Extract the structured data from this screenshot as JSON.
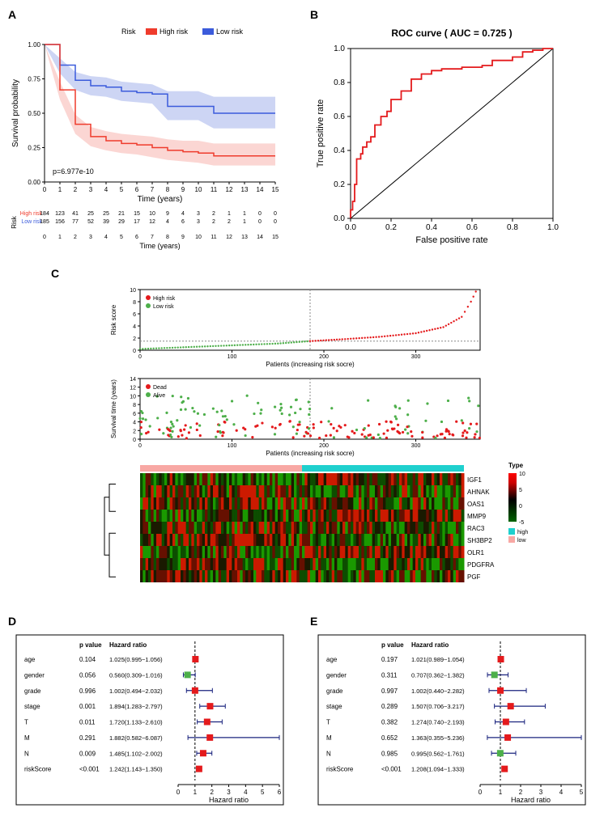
{
  "panelA": {
    "label": "A",
    "legend_title": "Risk",
    "legend": [
      {
        "label": "High risk",
        "color": "#ef3b2c"
      },
      {
        "label": "Low risk",
        "color": "#3b5bdb"
      }
    ],
    "y_label": "Survival probability",
    "x_label": "Time (years)",
    "p_value_text": "p=6.977e-10",
    "x_ticks": [
      0,
      1,
      2,
      3,
      4,
      5,
      6,
      7,
      8,
      9,
      10,
      11,
      12,
      13,
      14,
      15
    ],
    "y_ticks": [
      0.0,
      0.25,
      0.5,
      0.75,
      1.0
    ],
    "xlim": [
      0,
      15
    ],
    "ylim": [
      0,
      1
    ],
    "curves": {
      "high": {
        "color": "#ef3b2c",
        "band_color": "#f9c5c0",
        "points": [
          [
            0,
            1.0
          ],
          [
            1,
            0.67
          ],
          [
            2,
            0.42
          ],
          [
            3,
            0.33
          ],
          [
            4,
            0.3
          ],
          [
            5,
            0.28
          ],
          [
            6,
            0.27
          ],
          [
            7,
            0.25
          ],
          [
            8,
            0.23
          ],
          [
            9,
            0.22
          ],
          [
            10,
            0.21
          ],
          [
            11,
            0.19
          ],
          [
            12,
            0.19
          ],
          [
            13,
            0.19
          ],
          [
            14,
            0.19
          ],
          [
            15,
            0.19
          ]
        ],
        "band_upper": [
          [
            0,
            1.0
          ],
          [
            1,
            0.73
          ],
          [
            2,
            0.49
          ],
          [
            3,
            0.4
          ],
          [
            4,
            0.37
          ],
          [
            5,
            0.35
          ],
          [
            6,
            0.34
          ],
          [
            7,
            0.33
          ],
          [
            8,
            0.31
          ],
          [
            9,
            0.3
          ],
          [
            10,
            0.3
          ],
          [
            11,
            0.28
          ],
          [
            12,
            0.28
          ],
          [
            13,
            0.28
          ],
          [
            14,
            0.28
          ],
          [
            15,
            0.28
          ]
        ],
        "band_lower": [
          [
            0,
            1.0
          ],
          [
            1,
            0.6
          ],
          [
            2,
            0.35
          ],
          [
            3,
            0.26
          ],
          [
            4,
            0.23
          ],
          [
            5,
            0.21
          ],
          [
            6,
            0.2
          ],
          [
            7,
            0.18
          ],
          [
            8,
            0.16
          ],
          [
            9,
            0.15
          ],
          [
            10,
            0.14
          ],
          [
            11,
            0.12
          ],
          [
            12,
            0.12
          ],
          [
            13,
            0.12
          ],
          [
            14,
            0.12
          ],
          [
            15,
            0.12
          ]
        ]
      },
      "low": {
        "color": "#3b5bdb",
        "band_color": "#b8c3ef",
        "points": [
          [
            0,
            1.0
          ],
          [
            1,
            0.85
          ],
          [
            2,
            0.74
          ],
          [
            3,
            0.7
          ],
          [
            4,
            0.69
          ],
          [
            5,
            0.66
          ],
          [
            6,
            0.65
          ],
          [
            7,
            0.64
          ],
          [
            8,
            0.55
          ],
          [
            9,
            0.55
          ],
          [
            10,
            0.55
          ],
          [
            11,
            0.5
          ],
          [
            12,
            0.5
          ],
          [
            13,
            0.5
          ],
          [
            14,
            0.5
          ],
          [
            15,
            0.5
          ]
        ],
        "band_upper": [
          [
            0,
            1.0
          ],
          [
            1,
            0.9
          ],
          [
            2,
            0.8
          ],
          [
            3,
            0.77
          ],
          [
            4,
            0.76
          ],
          [
            5,
            0.73
          ],
          [
            6,
            0.72
          ],
          [
            7,
            0.71
          ],
          [
            8,
            0.66
          ],
          [
            9,
            0.66
          ],
          [
            10,
            0.66
          ],
          [
            11,
            0.62
          ],
          [
            12,
            0.62
          ],
          [
            13,
            0.62
          ],
          [
            14,
            0.62
          ],
          [
            15,
            0.62
          ]
        ],
        "band_lower": [
          [
            0,
            1.0
          ],
          [
            1,
            0.79
          ],
          [
            2,
            0.67
          ],
          [
            3,
            0.63
          ],
          [
            4,
            0.62
          ],
          [
            5,
            0.59
          ],
          [
            6,
            0.58
          ],
          [
            7,
            0.57
          ],
          [
            8,
            0.45
          ],
          [
            9,
            0.45
          ],
          [
            10,
            0.45
          ],
          [
            11,
            0.39
          ],
          [
            12,
            0.39
          ],
          [
            13,
            0.39
          ],
          [
            14,
            0.39
          ],
          [
            15,
            0.39
          ]
        ]
      }
    },
    "risk_table": {
      "y_label": "Risk",
      "rows": [
        {
          "label": "High risk",
          "color": "#ef3b2c",
          "counts": [
            184,
            123,
            41,
            25,
            25,
            21,
            15,
            10,
            9,
            4,
            3,
            2,
            1,
            1,
            0,
            0
          ]
        },
        {
          "label": "Low risk",
          "color": "#3b5bdb",
          "counts": [
            185,
            156,
            77,
            52,
            39,
            29,
            17,
            12,
            4,
            6,
            3,
            2,
            2,
            1,
            0,
            0
          ]
        }
      ]
    }
  },
  "panelB": {
    "label": "B",
    "title": "ROC curve ( AUC =  0.725 )",
    "x_label": "False positive rate",
    "y_label": "True positive rate",
    "ticks": [
      0.0,
      0.2,
      0.4,
      0.6,
      0.8,
      1.0
    ],
    "line_color": "#e41a1c",
    "diag_color": "#000000",
    "roc_points": [
      [
        0,
        0
      ],
      [
        0.01,
        0.05
      ],
      [
        0.02,
        0.1
      ],
      [
        0.03,
        0.2
      ],
      [
        0.05,
        0.35
      ],
      [
        0.06,
        0.38
      ],
      [
        0.08,
        0.42
      ],
      [
        0.1,
        0.45
      ],
      [
        0.12,
        0.48
      ],
      [
        0.15,
        0.55
      ],
      [
        0.18,
        0.6
      ],
      [
        0.2,
        0.63
      ],
      [
        0.25,
        0.7
      ],
      [
        0.3,
        0.75
      ],
      [
        0.35,
        0.82
      ],
      [
        0.4,
        0.85
      ],
      [
        0.45,
        0.87
      ],
      [
        0.55,
        0.88
      ],
      [
        0.65,
        0.89
      ],
      [
        0.7,
        0.9
      ],
      [
        0.8,
        0.93
      ],
      [
        0.85,
        0.95
      ],
      [
        0.9,
        0.98
      ],
      [
        0.95,
        0.99
      ],
      [
        1.0,
        1.0
      ]
    ]
  },
  "panelC": {
    "label": "C",
    "risk_plot": {
      "y_label": "Risk score",
      "x_label": "Patients (increasing risk socre)",
      "ylim": [
        0,
        10
      ],
      "y_ticks": [
        0,
        2,
        4,
        6,
        8,
        10
      ],
      "xlim": [
        0,
        370
      ],
      "x_ticks": [
        0,
        100,
        200,
        300
      ],
      "cutoff_x": 185,
      "cutoff_y": 1.5,
      "legend": [
        {
          "label": "High risk",
          "color": "#e41a1c"
        },
        {
          "label": "Low risk",
          "color": "#4daf4a"
        }
      ],
      "curve_low": [
        [
          0,
          0.2
        ],
        [
          50,
          0.5
        ],
        [
          100,
          0.8
        ],
        [
          150,
          1.1
        ],
        [
          185,
          1.5
        ]
      ],
      "curve_high": [
        [
          185,
          1.5
        ],
        [
          220,
          1.8
        ],
        [
          260,
          2.2
        ],
        [
          300,
          2.8
        ],
        [
          330,
          3.8
        ],
        [
          350,
          5.5
        ],
        [
          360,
          8.0
        ],
        [
          368,
          10.5
        ]
      ]
    },
    "surv_plot": {
      "y_label": "Survival time (years)",
      "x_label": "Patients (increasing risk socre)",
      "ylim": [
        0,
        14
      ],
      "y_ticks": [
        0,
        2,
        4,
        6,
        8,
        10,
        12,
        14
      ],
      "xlim": [
        0,
        370
      ],
      "x_ticks": [
        0,
        100,
        200,
        300
      ],
      "cutoff_x": 185,
      "legend": [
        {
          "label": "Dead",
          "color": "#e41a1c"
        },
        {
          "label": "Alive",
          "color": "#4daf4a"
        }
      ],
      "points_seed_count": 220
    },
    "heatmap": {
      "type_colors": {
        "high": "#1fd0ce",
        "low": "#f8a8a4"
      },
      "type_bar_label": "Type",
      "type_legend": [
        {
          "label": "high",
          "color": "#1fd0ce"
        },
        {
          "label": "low",
          "color": "#f8a8a4"
        }
      ],
      "scale_ticks": [
        -5,
        0,
        5,
        10
      ],
      "scale_colors": [
        "#006400",
        "#000000",
        "#cc0000",
        "#ff0000"
      ],
      "genes": [
        "IGF1",
        "AHNAK",
        "OAS1",
        "MMP9",
        "RAC3",
        "SH3BP2",
        "OLR1",
        "PDGFRA",
        "PGF"
      ]
    }
  },
  "panelD": {
    "label": "D",
    "header_p": "p value",
    "header_hr": "Hazard ratio",
    "x_label": "Hazard ratio",
    "x_ticks": [
      0,
      1,
      2,
      3,
      4,
      5,
      6
    ],
    "xlim": [
      0,
      6
    ],
    "rows": [
      {
        "name": "age",
        "p": "0.104",
        "hr": "1.025(0.995−1.056)",
        "est": 1.025,
        "lo": 0.995,
        "hi": 1.056,
        "color": "#e41a1c"
      },
      {
        "name": "gender",
        "p": "0.056",
        "hr": "0.560(0.309−1.016)",
        "est": 0.56,
        "lo": 0.309,
        "hi": 1.016,
        "color": "#4daf4a"
      },
      {
        "name": "grade",
        "p": "0.996",
        "hr": "1.002(0.494−2.032)",
        "est": 1.002,
        "lo": 0.494,
        "hi": 2.032,
        "color": "#e41a1c"
      },
      {
        "name": "stage",
        "p": "0.001",
        "hr": "1.894(1.283−2.797)",
        "est": 1.894,
        "lo": 1.283,
        "hi": 2.797,
        "color": "#e41a1c"
      },
      {
        "name": "T",
        "p": "0.011",
        "hr": "1.720(1.133−2.610)",
        "est": 1.72,
        "lo": 1.133,
        "hi": 2.61,
        "color": "#e41a1c"
      },
      {
        "name": "M",
        "p": "0.291",
        "hr": "1.882(0.582−6.087)",
        "est": 1.882,
        "lo": 0.582,
        "hi": 6.087,
        "color": "#e41a1c"
      },
      {
        "name": "N",
        "p": "0.009",
        "hr": "1.485(1.102−2.002)",
        "est": 1.485,
        "lo": 1.102,
        "hi": 2.002,
        "color": "#e41a1c"
      },
      {
        "name": "riskScore",
        "p": "<0.001",
        "hr": "1.242(1.143−1.350)",
        "est": 1.242,
        "lo": 1.143,
        "hi": 1.35,
        "color": "#e41a1c"
      }
    ]
  },
  "panelE": {
    "label": "E",
    "header_p": "p value",
    "header_hr": "Hazard ratio",
    "x_label": "Hazard ratio",
    "x_ticks": [
      0,
      1,
      2,
      3,
      4,
      5
    ],
    "xlim": [
      0,
      5
    ],
    "rows": [
      {
        "name": "age",
        "p": "0.197",
        "hr": "1.021(0.989−1.054)",
        "est": 1.021,
        "lo": 0.989,
        "hi": 1.054,
        "color": "#e41a1c"
      },
      {
        "name": "gender",
        "p": "0.311",
        "hr": "0.707(0.362−1.382)",
        "est": 0.707,
        "lo": 0.362,
        "hi": 1.382,
        "color": "#4daf4a"
      },
      {
        "name": "grade",
        "p": "0.997",
        "hr": "1.002(0.440−2.282)",
        "est": 1.002,
        "lo": 0.44,
        "hi": 2.282,
        "color": "#e41a1c"
      },
      {
        "name": "stage",
        "p": "0.289",
        "hr": "1.507(0.706−3.217)",
        "est": 1.507,
        "lo": 0.706,
        "hi": 3.217,
        "color": "#e41a1c"
      },
      {
        "name": "T",
        "p": "0.382",
        "hr": "1.274(0.740−2.193)",
        "est": 1.274,
        "lo": 0.74,
        "hi": 2.193,
        "color": "#e41a1c"
      },
      {
        "name": "M",
        "p": "0.652",
        "hr": "1.363(0.355−5.236)",
        "est": 1.363,
        "lo": 0.355,
        "hi": 5.236,
        "color": "#e41a1c"
      },
      {
        "name": "N",
        "p": "0.985",
        "hr": "0.995(0.562−1.761)",
        "est": 0.995,
        "lo": 0.562,
        "hi": 1.761,
        "color": "#4daf4a"
      },
      {
        "name": "riskScore",
        "p": "<0.001",
        "hr": "1.208(1.094−1.333)",
        "est": 1.208,
        "lo": 1.094,
        "hi": 1.333,
        "color": "#e41a1c"
      }
    ]
  }
}
